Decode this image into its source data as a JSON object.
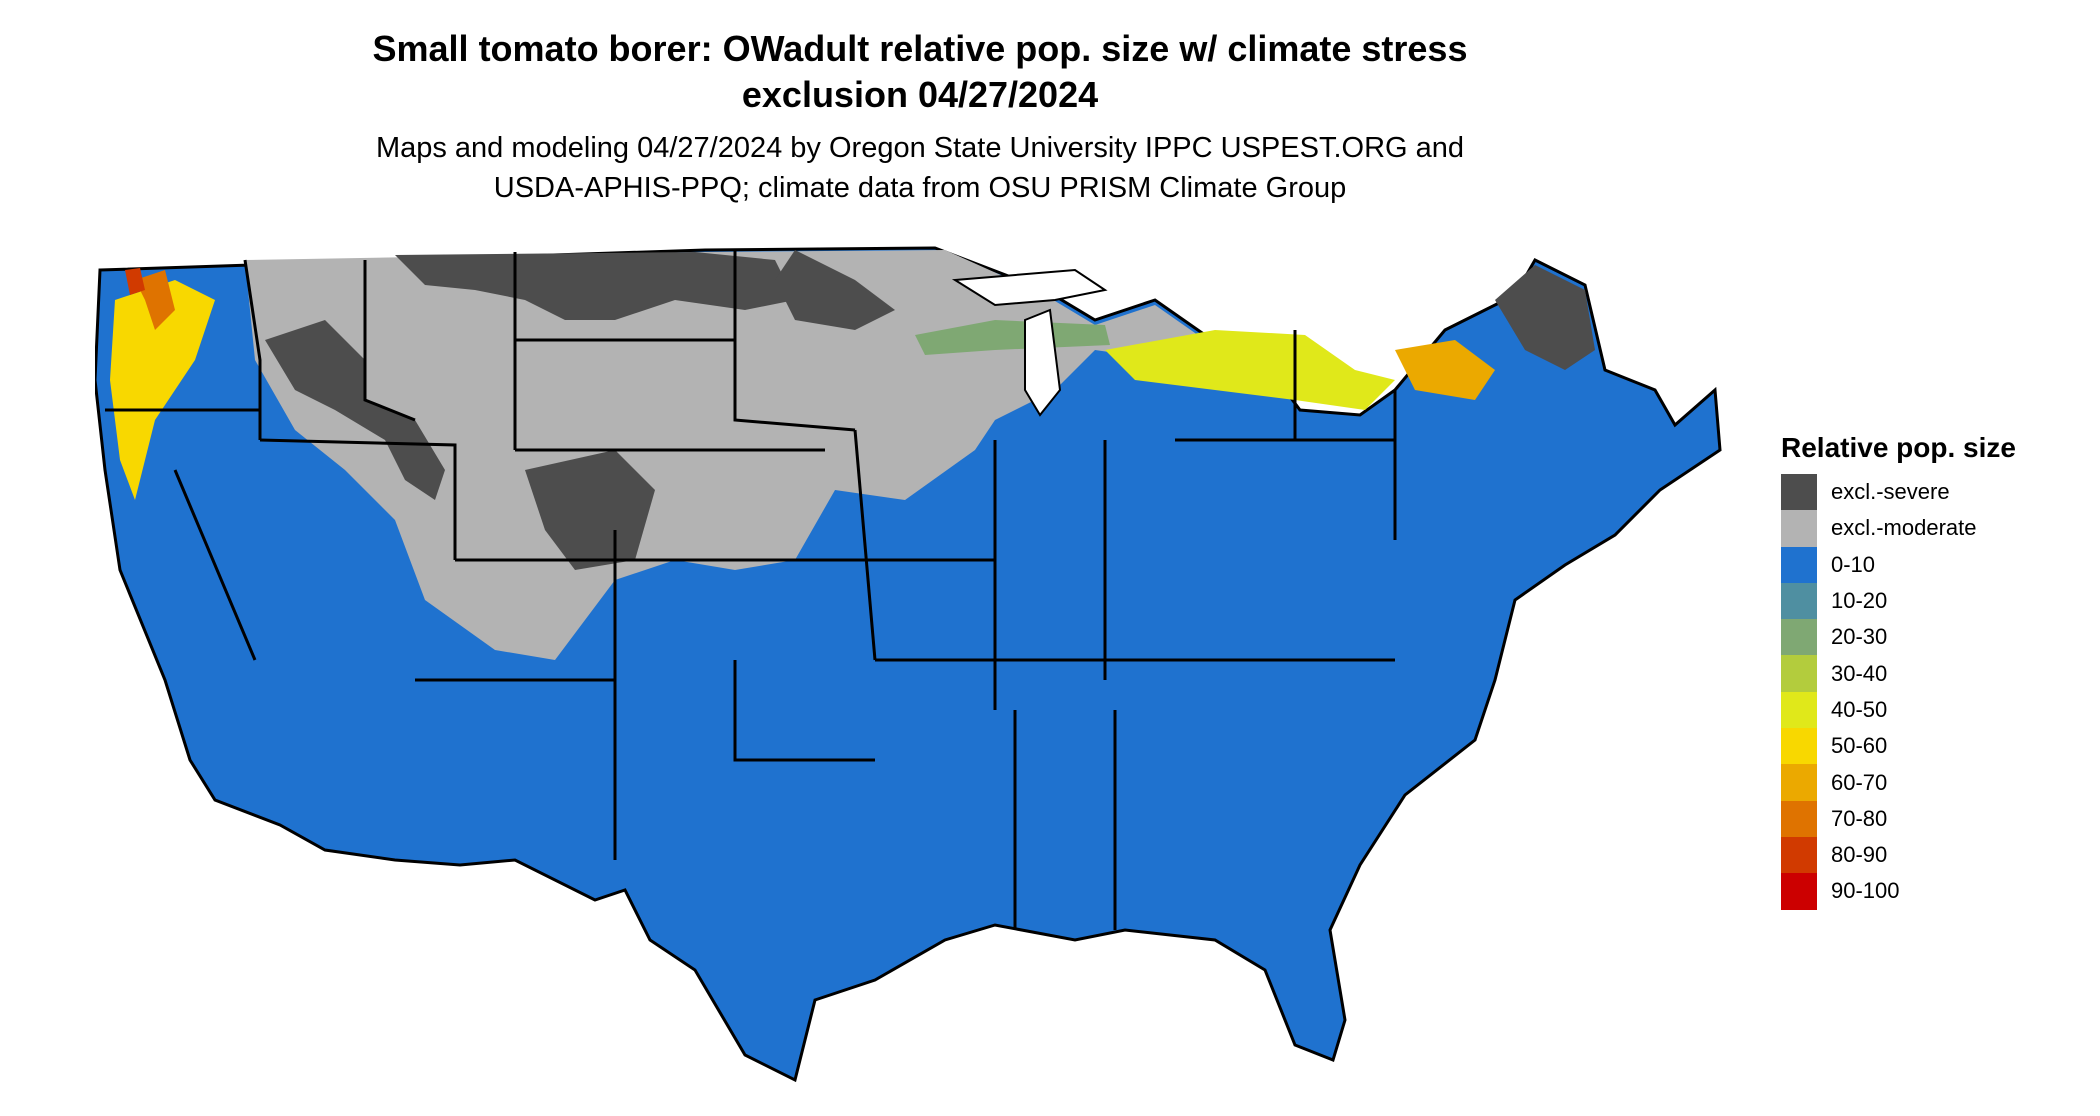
{
  "title_line1": "Small tomato borer: OWadult relative pop. size w/ climate stress",
  "title_line2": "exclusion 04/27/2024",
  "subtitle_line1": "Maps and modeling 04/27/2024 by Oregon State University IPPC USPEST.ORG and",
  "subtitle_line2": "USDA-APHIS-PPQ; climate data from OSU PRISM Climate Group",
  "legend": {
    "title": "Relative pop. size",
    "items": [
      {
        "label": "excl.-severe",
        "color": "#4d4d4d"
      },
      {
        "label": "excl.-moderate",
        "color": "#b3b3b3"
      },
      {
        "label": "0-10",
        "color": "#1f72cf"
      },
      {
        "label": "10-20",
        "color": "#4f8fa1"
      },
      {
        "label": "20-30",
        "color": "#7fa873"
      },
      {
        "label": "30-40",
        "color": "#b3cc3d"
      },
      {
        "label": "40-50",
        "color": "#e0e81a"
      },
      {
        "label": "50-60",
        "color": "#f8d800"
      },
      {
        "label": "60-70",
        "color": "#eba900"
      },
      {
        "label": "70-80",
        "color": "#df7300"
      },
      {
        "label": "80-90",
        "color": "#d13a00"
      },
      {
        "label": "90-100",
        "color": "#cc0000"
      }
    ]
  }
}
